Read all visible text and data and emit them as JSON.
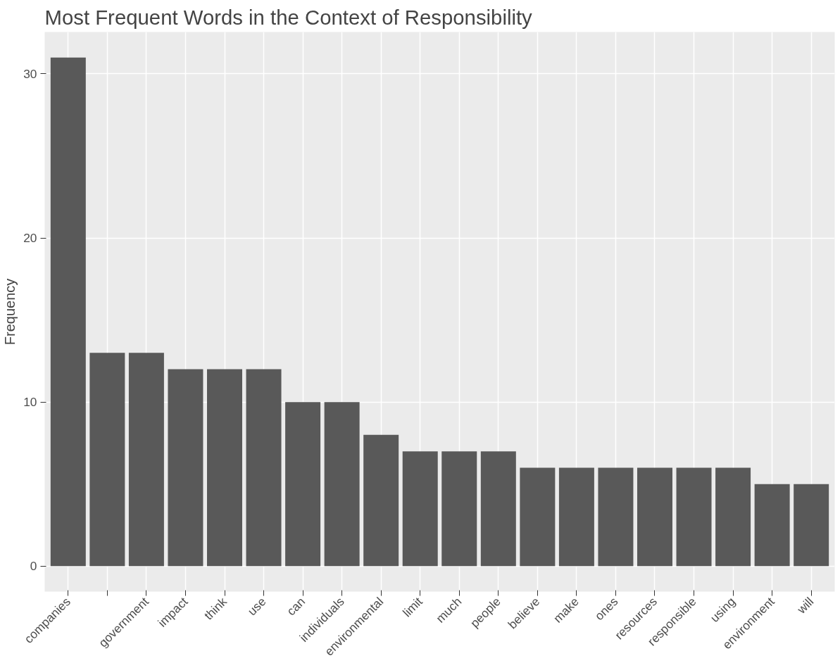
{
  "chart_data": {
    "type": "bar",
    "title": "Most Frequent Words in the Context of Responsibility",
    "ylabel": "Frequency",
    "categories": [
      "companies",
      null,
      "government",
      "impact",
      "think",
      "use",
      "can",
      "individuals",
      "environmental",
      "limit",
      "much",
      "people",
      "believe",
      "make",
      "ones",
      "resources",
      "responsible",
      "using",
      "environment",
      "will"
    ],
    "values": [
      31,
      13,
      13,
      12,
      12,
      12,
      10,
      10,
      8,
      7,
      7,
      7,
      6,
      6,
      6,
      6,
      6,
      6,
      5,
      5
    ],
    "color": "#595959",
    "ylim": [
      -1.55,
      32.55
    ],
    "yticks": [
      0,
      10,
      20,
      30
    ],
    "grid": true
  }
}
